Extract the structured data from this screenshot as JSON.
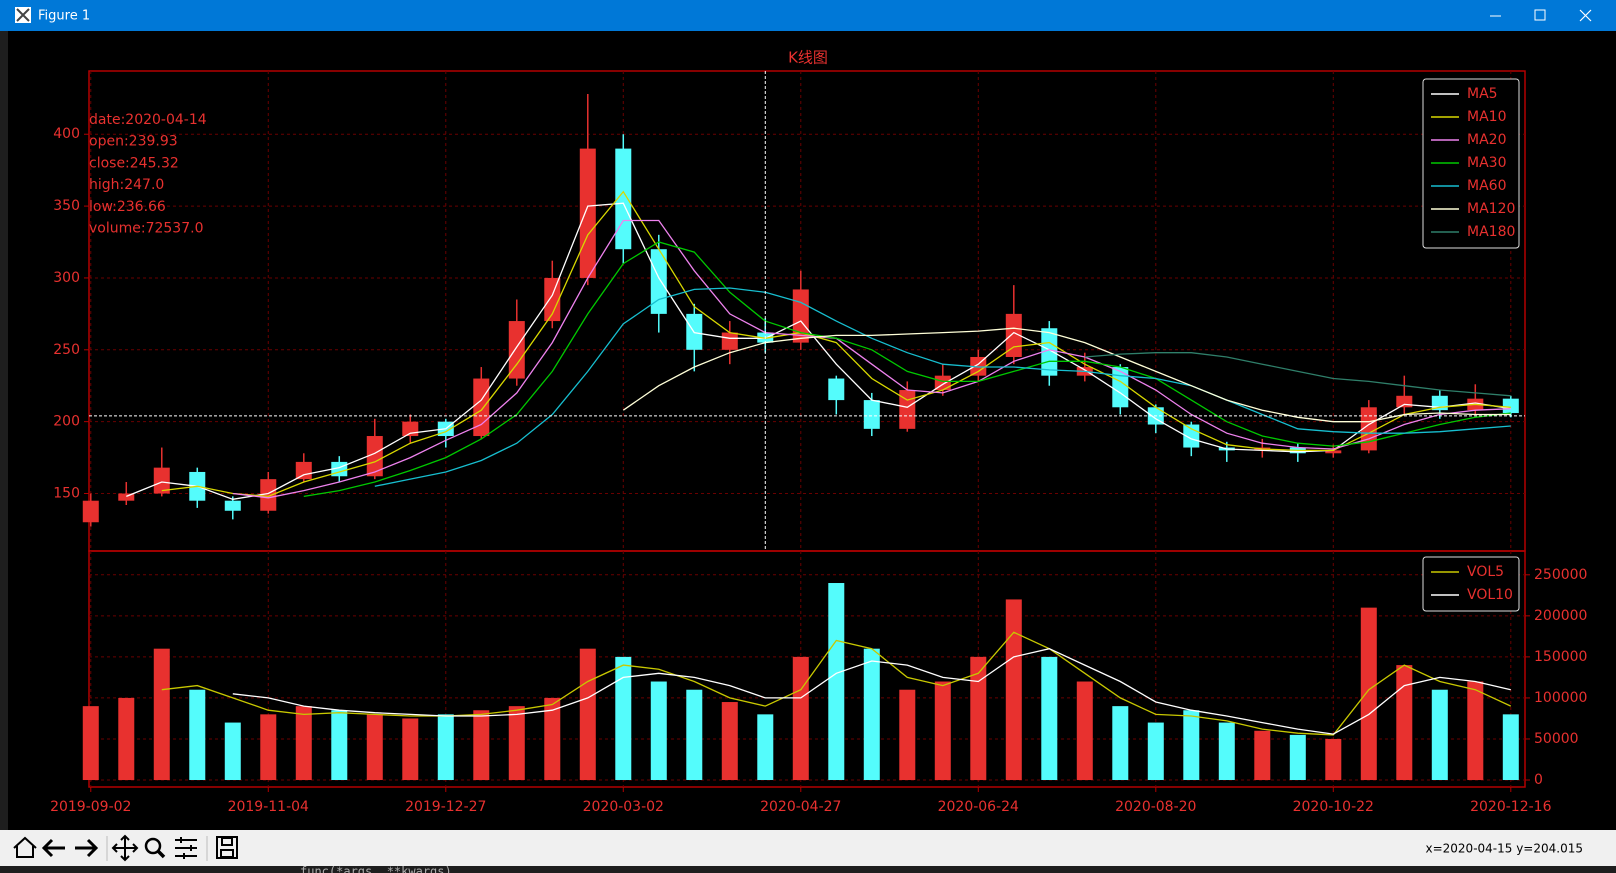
{
  "window": {
    "title": "Figure 1"
  },
  "chart_data": [
    {
      "type": "candlestick",
      "title": "K线图",
      "open": [
        130,
        145,
        150,
        165,
        145,
        138,
        160,
        172,
        162,
        190,
        200,
        190,
        230,
        270,
        300,
        390,
        320,
        275,
        250,
        262,
        255,
        230,
        215,
        195,
        222,
        232,
        245,
        265,
        232,
        238,
        210,
        198,
        182,
        180,
        182,
        178,
        180,
        210,
        218,
        208,
        216
      ],
      "close": [
        145,
        150,
        168,
        145,
        138,
        160,
        172,
        162,
        190,
        200,
        190,
        230,
        270,
        300,
        390,
        320,
        275,
        250,
        262,
        255,
        292,
        215,
        195,
        222,
        232,
        245,
        275,
        232,
        238,
        210,
        198,
        182,
        180,
        182,
        178,
        180,
        210,
        218,
        208,
        216,
        206
      ],
      "high": [
        150,
        158,
        182,
        168,
        148,
        165,
        178,
        176,
        202,
        205,
        202,
        238,
        285,
        312,
        428,
        400,
        330,
        282,
        270,
        272,
        305,
        232,
        220,
        228,
        240,
        250,
        295,
        270,
        248,
        240,
        212,
        200,
        186,
        188,
        185,
        184,
        215,
        232,
        222,
        226,
        218
      ],
      "low": [
        127,
        142,
        148,
        140,
        132,
        136,
        158,
        158,
        160,
        185,
        182,
        188,
        225,
        265,
        295,
        310,
        262,
        235,
        240,
        248,
        250,
        205,
        190,
        193,
        218,
        228,
        240,
        225,
        228,
        205,
        192,
        176,
        172,
        175,
        172,
        175,
        178,
        205,
        202,
        205,
        203
      ],
      "up_color": "#e8312f",
      "down_color": "#54fcfc",
      "ylim": [
        110,
        444
      ],
      "yticks": [
        150,
        200,
        250,
        300,
        350,
        400
      ],
      "grid": true,
      "legend": "upper right",
      "series": [
        {
          "name": "MA5",
          "color": "#ffffff",
          "values": [
            null,
            148,
            158,
            155,
            146,
            150,
            163,
            168,
            178,
            192,
            195,
            215,
            252,
            288,
            350,
            352,
            300,
            262,
            258,
            258,
            270,
            240,
            215,
            210,
            226,
            240,
            262,
            250,
            236,
            220,
            202,
            188,
            181,
            180,
            179,
            180,
            198,
            212,
            210,
            213,
            209
          ]
        },
        {
          "name": "MA10",
          "color": "#d8d800",
          "values": [
            null,
            null,
            152,
            155,
            150,
            148,
            158,
            165,
            172,
            185,
            193,
            208,
            240,
            275,
            330,
            360,
            320,
            280,
            262,
            258,
            262,
            255,
            230,
            215,
            222,
            235,
            252,
            255,
            240,
            228,
            210,
            195,
            184,
            181,
            180,
            180,
            192,
            205,
            210,
            212,
            210
          ]
        },
        {
          "name": "MA20",
          "color": "#ee82ee",
          "values": [
            null,
            null,
            null,
            null,
            150,
            147,
            152,
            158,
            165,
            175,
            187,
            198,
            220,
            255,
            300,
            340,
            340,
            305,
            275,
            262,
            260,
            258,
            240,
            222,
            220,
            228,
            242,
            250,
            245,
            235,
            222,
            205,
            192,
            185,
            182,
            181,
            188,
            198,
            205,
            208,
            209
          ]
        },
        {
          "name": "MA30",
          "color": "#00c800",
          "values": [
            null,
            null,
            null,
            null,
            null,
            null,
            148,
            152,
            158,
            166,
            175,
            188,
            205,
            235,
            275,
            310,
            325,
            318,
            290,
            270,
            262,
            258,
            250,
            235,
            228,
            228,
            235,
            242,
            242,
            238,
            230,
            215,
            200,
            190,
            185,
            183,
            186,
            192,
            198,
            203,
            206
          ]
        },
        {
          "name": "MA60",
          "color": "#17becf",
          "values": [
            null,
            null,
            null,
            null,
            null,
            null,
            null,
            null,
            155,
            160,
            165,
            173,
            185,
            205,
            235,
            268,
            285,
            292,
            293,
            290,
            283,
            270,
            258,
            248,
            240,
            238,
            238,
            236,
            235,
            232,
            230,
            225,
            215,
            205,
            195,
            193,
            192,
            192,
            193,
            195,
            197
          ]
        },
        {
          "name": "MA120",
          "color": "#ffffd8",
          "values": [
            null,
            null,
            null,
            null,
            null,
            null,
            null,
            null,
            null,
            null,
            null,
            null,
            null,
            null,
            null,
            208,
            225,
            238,
            248,
            255,
            258,
            260,
            260,
            261,
            262,
            263,
            265,
            262,
            255,
            245,
            235,
            225,
            215,
            208,
            203,
            200,
            200,
            205,
            206,
            205,
            205
          ]
        },
        {
          "name": "MA180",
          "color": "#2f7f6a",
          "values": [
            null,
            null,
            null,
            null,
            null,
            null,
            null,
            null,
            null,
            null,
            null,
            null,
            null,
            null,
            null,
            null,
            null,
            null,
            null,
            null,
            null,
            null,
            null,
            null,
            null,
            null,
            null,
            null,
            245,
            247,
            248,
            248,
            245,
            240,
            235,
            230,
            228,
            225,
            222,
            220,
            218
          ]
        }
      ],
      "annotations": [
        "date:2020-04-14",
        "open:239.93",
        "close:245.32",
        "high:247.0",
        "low:236.66",
        "volume:72537.0"
      ],
      "crosshair": {
        "x": 19,
        "y": 204.015
      }
    },
    {
      "type": "bar",
      "values": [
        90000,
        100000,
        160000,
        110000,
        70000,
        80000,
        90000,
        85000,
        80000,
        75000,
        80000,
        85000,
        90000,
        100000,
        160000,
        150000,
        120000,
        110000,
        95000,
        80000,
        150000,
        240000,
        160000,
        110000,
        120000,
        150000,
        220000,
        150000,
        120000,
        90000,
        70000,
        85000,
        70000,
        60000,
        55000,
        50000,
        210000,
        140000,
        110000,
        120000,
        80000
      ],
      "xlim": [
        -0.05,
        40.4
      ],
      "xticks": [
        {
          "value": 0,
          "label": "2019-09-02"
        },
        {
          "value": 5,
          "label": "2019-11-04"
        },
        {
          "value": 10,
          "label": "2019-12-27"
        },
        {
          "value": 15,
          "label": "2020-03-02"
        },
        {
          "value": 20,
          "label": "2020-04-27"
        },
        {
          "value": 25,
          "label": "2020-06-24"
        },
        {
          "value": 30,
          "label": "2020-08-20"
        },
        {
          "value": 35,
          "label": "2020-10-22"
        },
        {
          "value": 40,
          "label": "2020-12-16"
        }
      ],
      "ylim": [
        -8500,
        279000
      ],
      "yticks": [
        0,
        50000,
        100000,
        150000,
        200000,
        250000
      ],
      "grid": true,
      "legend": "upper right",
      "series": [
        {
          "name": "VOL5",
          "color": "#c8c800",
          "values": [
            null,
            null,
            110000,
            115000,
            100000,
            85000,
            80000,
            82000,
            80000,
            78000,
            78000,
            80000,
            85000,
            92000,
            120000,
            140000,
            135000,
            120000,
            100000,
            90000,
            110000,
            170000,
            160000,
            125000,
            115000,
            130000,
            180000,
            160000,
            130000,
            100000,
            80000,
            78000,
            72000,
            62000,
            57000,
            55000,
            110000,
            140000,
            120000,
            110000,
            90000
          ]
        },
        {
          "name": "VOL10",
          "color": "#ffffff",
          "values": [
            null,
            null,
            null,
            null,
            105000,
            100000,
            90000,
            85000,
            82000,
            80000,
            78000,
            78000,
            80000,
            85000,
            100000,
            125000,
            130000,
            125000,
            115000,
            100000,
            100000,
            130000,
            145000,
            140000,
            125000,
            120000,
            150000,
            160000,
            140000,
            120000,
            95000,
            85000,
            78000,
            70000,
            62000,
            56000,
            80000,
            115000,
            125000,
            120000,
            110000
          ]
        }
      ]
    }
  ],
  "toolbar": {
    "status": "x=2020-04-15 y=204.015"
  },
  "background_text": "func(*args, **kwargs)"
}
